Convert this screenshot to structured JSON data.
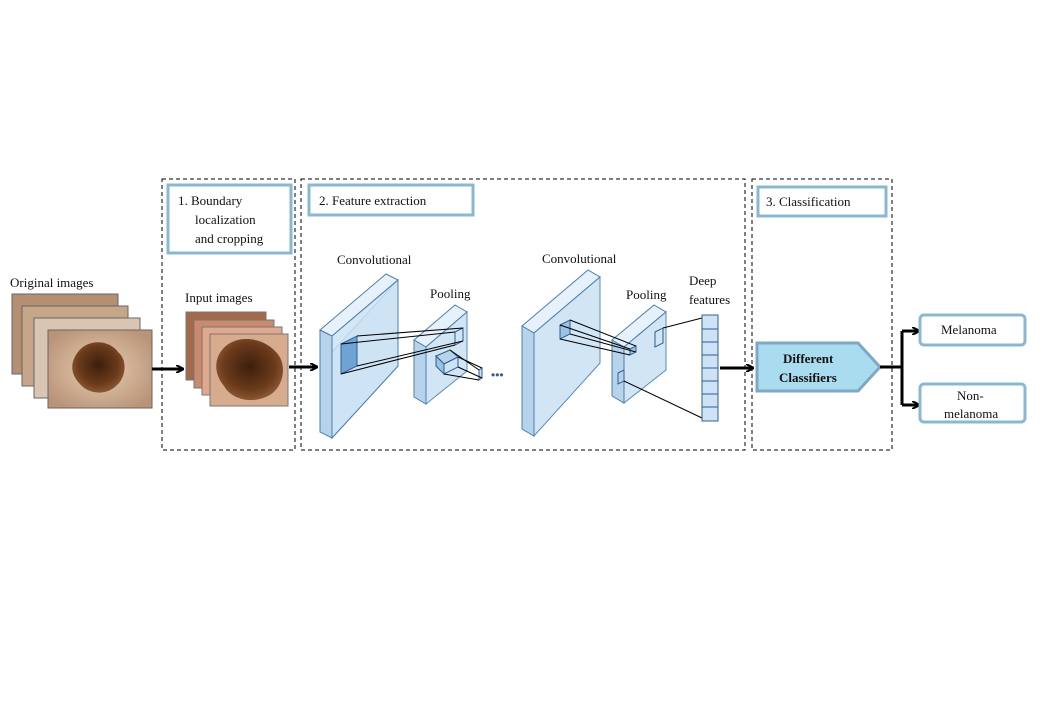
{
  "labels": {
    "original_images": "Original  images",
    "input_images": "Input   images",
    "stage1_line1": "1. Boundary",
    "stage1_line2": "localization",
    "stage1_line3": "and cropping",
    "stage2": "2. Feature extraction",
    "stage3": "3. Classification",
    "conv1": "Convolutional",
    "pool1": "Pooling",
    "conv2": "Convolutional",
    "pool2": "Pooling",
    "deep_line1": "Deep",
    "deep_line2": "features",
    "ellipsis": "•••",
    "classifier_line1": "Different",
    "classifier_line2": "Classifiers",
    "out1": "Melanoma",
    "out2_line1": "Non-",
    "out2_line2": "melanoma"
  },
  "colors": {
    "stage_border": "#8ab8d2",
    "layer_fill": "#cde3f5",
    "layer_stroke": "#4a7fae",
    "classifier_fill": "#a9dcef",
    "classifier_stroke": "#7fa8c4",
    "lesion": "#5a3216",
    "skin": "#d9b79a"
  }
}
